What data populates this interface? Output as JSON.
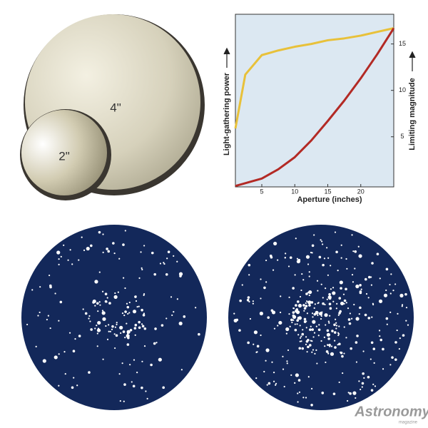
{
  "mirrors": {
    "large_label": "4\"",
    "small_label": "2\""
  },
  "chart_data": {
    "type": "line",
    "xlabel": "Aperture (inches)",
    "ylabel": "Limiting magnitude",
    "left_label": "Light-gathering power",
    "y_axis_position": "right",
    "x": [
      1,
      2.5,
      5,
      7.5,
      10,
      12.5,
      15,
      17.5,
      20,
      22.5,
      25
    ],
    "series": [
      {
        "color": "#e8c13a",
        "values": [
          5.9,
          11.7,
          13.8,
          14.3,
          14.7,
          15.0,
          15.4,
          15.6,
          15.9,
          16.3,
          16.7
        ]
      },
      {
        "color": "#b32a25",
        "values": [
          -0.3,
          0,
          0.5,
          1.5,
          2.8,
          4.6,
          6.7,
          8.9,
          11.3,
          13.9,
          16.7
        ]
      }
    ],
    "xlim": [
      1,
      25
    ],
    "ylim": [
      -0.4,
      18.2
    ],
    "xticks": [
      5,
      10,
      15,
      20
    ],
    "yticks": [
      5,
      10,
      15
    ]
  },
  "logo": {
    "name": "Astronomy",
    "tagline": "magazine"
  }
}
